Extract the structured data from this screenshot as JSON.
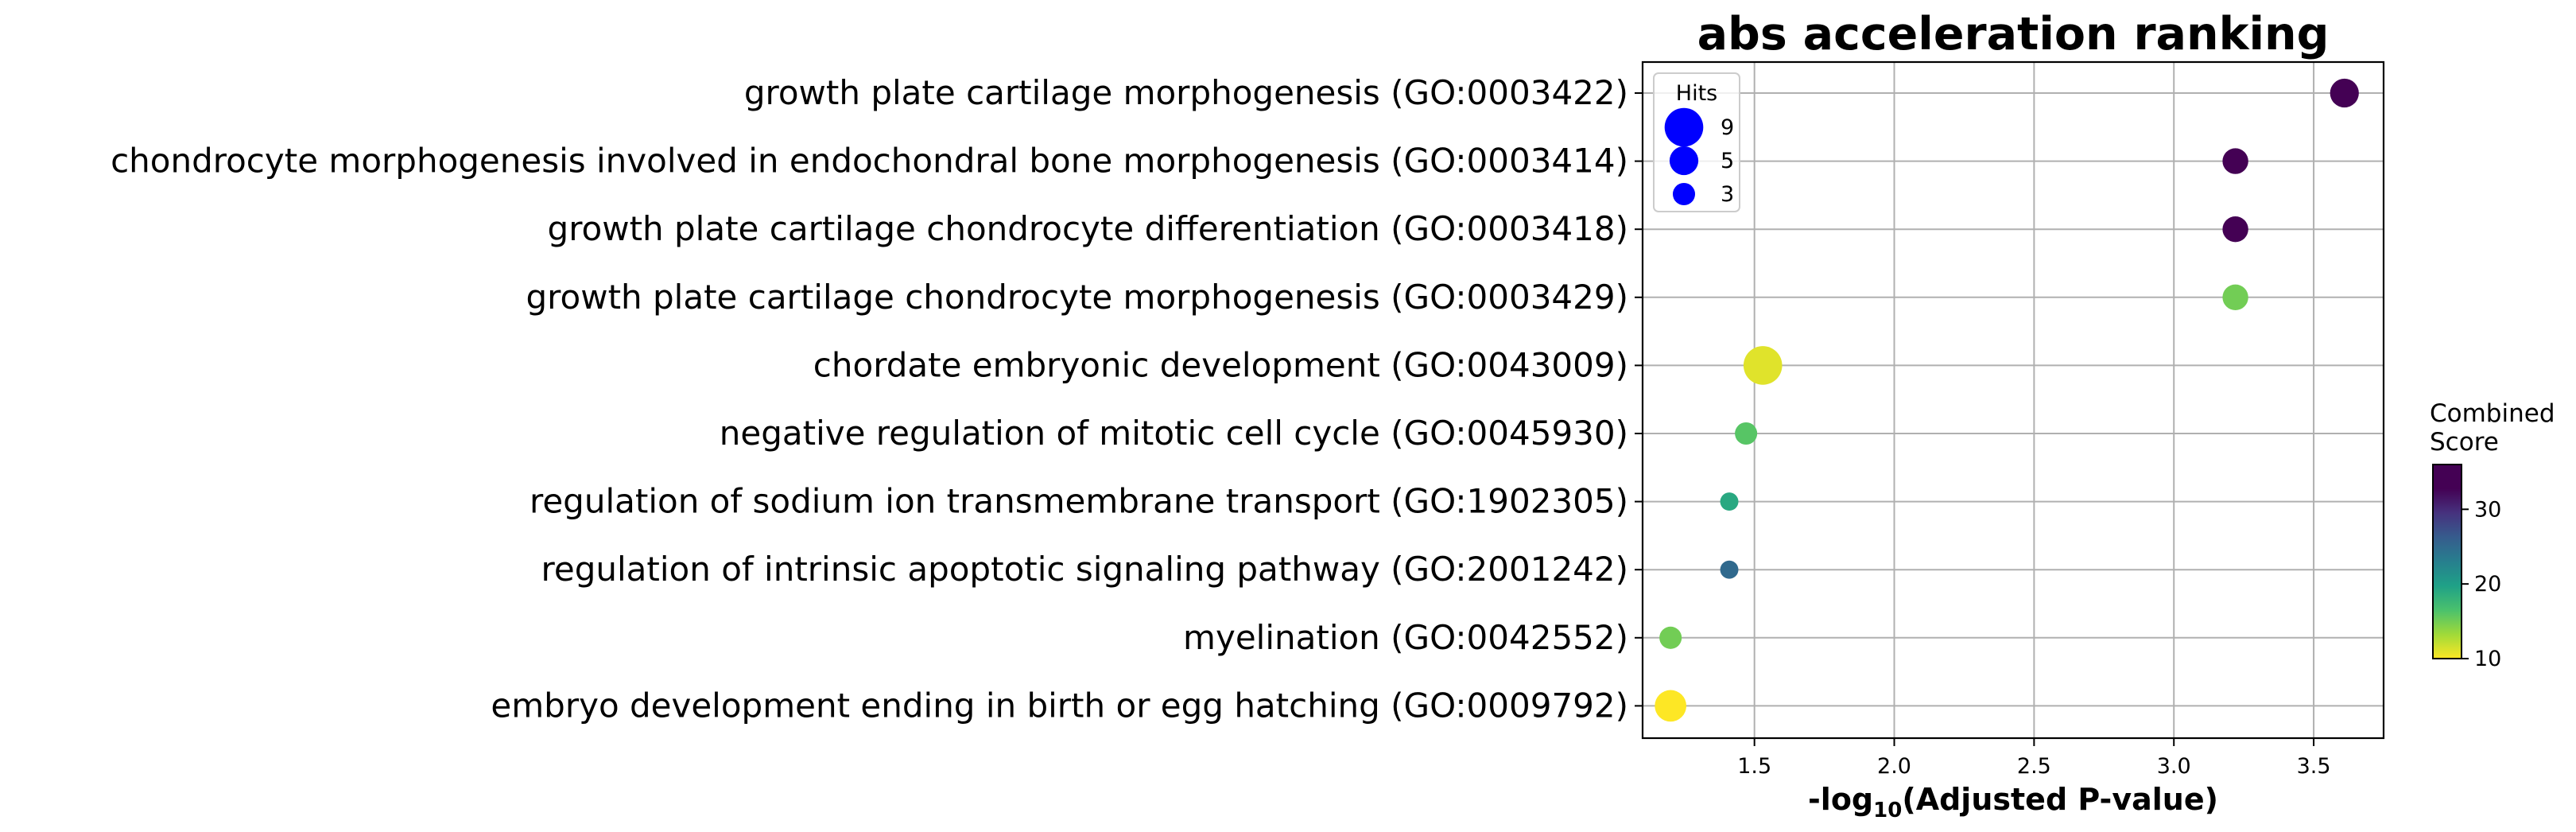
{
  "chart_data": {
    "type": "scatter",
    "title": "abs acceleration ranking",
    "xlabel_prefix": "-log",
    "xlabel_sub": "10",
    "xlabel_suffix": "(Adjusted P-value)",
    "ylabel": "",
    "xlim": [
      1.1,
      3.75
    ],
    "xticks": [
      1.5,
      2.0,
      2.5,
      3.0,
      3.5
    ],
    "xtick_labels": [
      "1.5",
      "2.0",
      "2.5",
      "3.0",
      "3.5"
    ],
    "grid": true,
    "categories": [
      "growth plate cartilage morphogenesis (GO:0003422)",
      "chondrocyte morphogenesis involved in endochondral bone morphogenesis (GO:0003414)",
      "growth plate cartilage chondrocyte differentiation (GO:0003418)",
      "growth plate cartilage chondrocyte morphogenesis (GO:0003429)",
      "chordate embryonic development (GO:0043009)",
      "negative regulation of mitotic cell cycle (GO:0045930)",
      "regulation of sodium ion transmembrane transport (GO:1902305)",
      "regulation of intrinsic apoptotic signaling pathway (GO:2001242)",
      "myelination (GO:0042552)",
      "embryo development ending in birth or egg hatching (GO:0009792)"
    ],
    "points": [
      {
        "x": 3.61,
        "hits": 5,
        "score": 35
      },
      {
        "x": 3.22,
        "hits": 4,
        "score": 35
      },
      {
        "x": 3.22,
        "hits": 4,
        "score": 35
      },
      {
        "x": 3.22,
        "hits": 4,
        "score": 15
      },
      {
        "x": 1.53,
        "hits": 9,
        "score": 11
      },
      {
        "x": 1.47,
        "hits": 3,
        "score": 16
      },
      {
        "x": 1.41,
        "hits": 2,
        "score": 19
      },
      {
        "x": 1.41,
        "hits": 2,
        "score": 25
      },
      {
        "x": 1.2,
        "hits": 3,
        "score": 15
      },
      {
        "x": 1.2,
        "hits": 6,
        "score": 10
      }
    ],
    "size_legend": {
      "title": "Hits",
      "entries": [
        {
          "label": "9",
          "hits": 9
        },
        {
          "label": "5",
          "hits": 5
        },
        {
          "label": "3",
          "hits": 3
        }
      ],
      "color": "#0000ff",
      "placement": "upper-left"
    },
    "colorbar": {
      "title_line1": "Combined",
      "title_line2": "Score",
      "range": [
        10,
        36
      ],
      "ticks": [
        10,
        20,
        30
      ],
      "tick_labels": [
        "10",
        "20",
        "30"
      ],
      "colormap": "viridis_r"
    }
  }
}
